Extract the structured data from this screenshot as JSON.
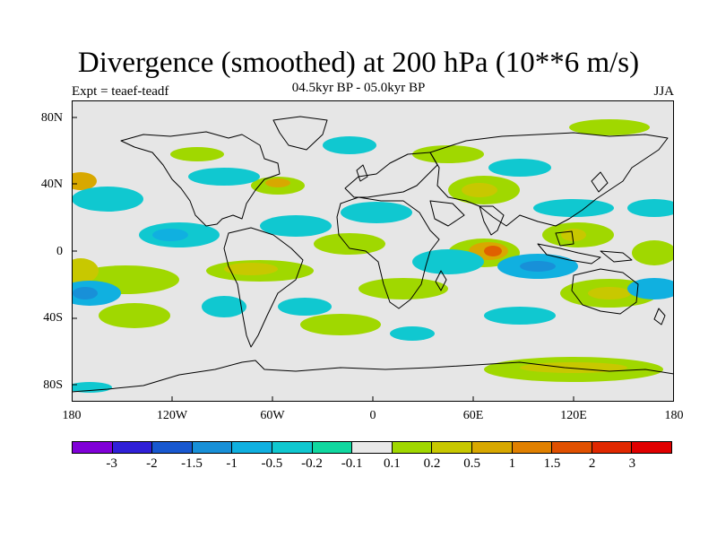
{
  "title": "Divergence (smoothed) at 200 hPa (10**6 m/s)",
  "subtitle": "04.5kyr BP - 05.0kyr BP",
  "experiment": "Expt = teaef-teadf",
  "season": "JJA",
  "lat_labels": [
    "80N",
    "40N",
    "0",
    "40S",
    "80S"
  ],
  "lon_labels": [
    "180",
    "120W",
    "60W",
    "0",
    "60E",
    "120E",
    "180"
  ],
  "legend": {
    "labels": [
      "-3",
      "-2",
      "-1.5",
      "-1",
      "-0.5",
      "-0.2",
      "-0.1",
      "0.1",
      "0.2",
      "0.5",
      "1",
      "1.5",
      "2",
      "3"
    ],
    "colors": [
      "#8000d8",
      "#3020d8",
      "#1858d0",
      "#1890d8",
      "#10b0e0",
      "#10c8d0",
      "#10d8a0",
      "#e8e8e8",
      "#a0d800",
      "#c8c800",
      "#d8a800",
      "#e08000",
      "#e05000",
      "#e02800",
      "#e00000"
    ]
  },
  "map": {
    "background_color": "#e6e6e6",
    "coast_color": "#000000"
  }
}
